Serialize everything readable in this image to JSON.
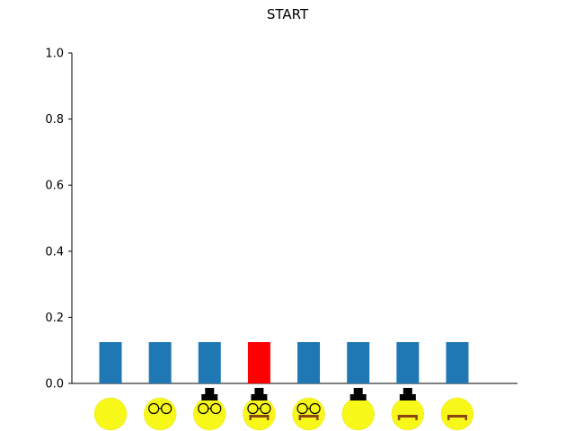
{
  "chart_data": {
    "type": "bar",
    "title": "START",
    "xlabel": "",
    "ylabel": "",
    "ylim": [
      0,
      1.0
    ],
    "yticks": [
      "0.0",
      "0.2",
      "0.4",
      "0.6",
      "0.8",
      "1.0"
    ],
    "grid": false,
    "legend": "none",
    "categories": [
      {
        "glasses": false,
        "hat": false,
        "mustache": false
      },
      {
        "glasses": true,
        "hat": false,
        "mustache": false
      },
      {
        "glasses": true,
        "hat": true,
        "mustache": false
      },
      {
        "glasses": true,
        "hat": true,
        "mustache": true
      },
      {
        "glasses": true,
        "hat": false,
        "mustache": true
      },
      {
        "glasses": false,
        "hat": true,
        "mustache": false
      },
      {
        "glasses": false,
        "hat": true,
        "mustache": true
      },
      {
        "glasses": false,
        "hat": false,
        "mustache": true
      }
    ],
    "values": [
      0.125,
      0.125,
      0.125,
      0.125,
      0.125,
      0.125,
      0.125,
      0.125
    ],
    "highlight_index": 3,
    "colors": {
      "bar": "#1f77b4",
      "highlight": "#ff0000",
      "face": "#f7f719",
      "hat": "#000000",
      "mustache": "#8b4513"
    }
  }
}
